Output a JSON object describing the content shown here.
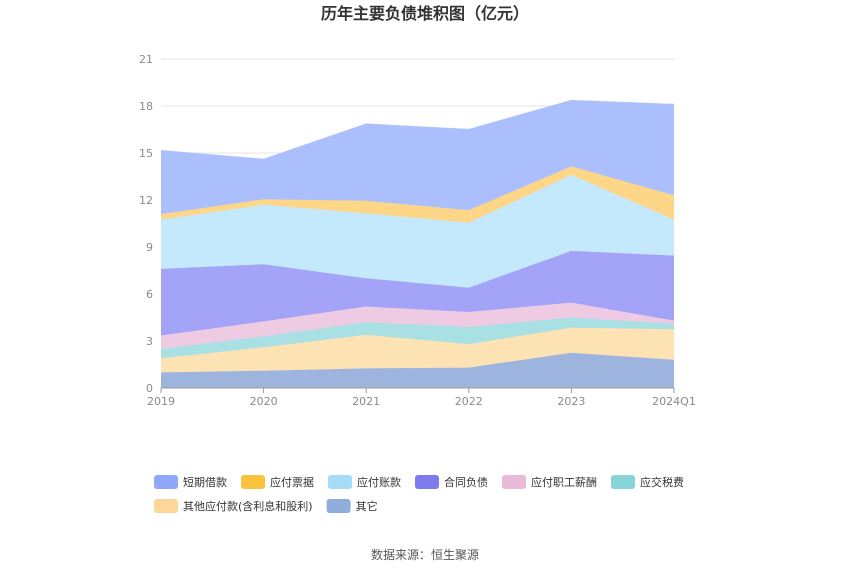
{
  "chart_data": {
    "type": "area",
    "stacked": true,
    "title": "历年主要负债堆积图（亿元）",
    "xlabel": "",
    "ylabel": "",
    "categories": [
      "2019",
      "2020",
      "2021",
      "2022",
      "2023",
      "2024Q1"
    ],
    "ylim": [
      0,
      21
    ],
    "yticks": [
      "0",
      "3",
      "6",
      "9",
      "12",
      "15",
      "18",
      "21"
    ],
    "grid": true,
    "legend_position": "bottom",
    "series": [
      {
        "name": "其它",
        "color": "#9db5de",
        "values": [
          1.0,
          1.1,
          1.25,
          1.3,
          2.25,
          1.8
        ]
      },
      {
        "name": "其他应付款(含利息和股利)",
        "color": "#fde2b4",
        "values": [
          0.9,
          1.5,
          2.15,
          1.5,
          1.6,
          1.95
        ]
      },
      {
        "name": "应交税费",
        "color": "#a8e0e3",
        "values": [
          0.6,
          0.7,
          0.8,
          1.1,
          0.65,
          0.35
        ]
      },
      {
        "name": "应付职工薪酬",
        "color": "#efcbe3",
        "values": [
          0.85,
          0.95,
          1.0,
          0.95,
          0.95,
          0.2
        ]
      },
      {
        "name": "合同负债",
        "color": "#a3a3f7",
        "values": [
          4.25,
          3.65,
          1.8,
          1.55,
          3.3,
          4.15
        ]
      },
      {
        "name": "应付账款",
        "color": "#c4e8fc",
        "values": [
          3.15,
          3.8,
          4.15,
          4.15,
          4.85,
          2.3
        ]
      },
      {
        "name": "应付票据",
        "color": "#fdd688",
        "values": [
          0.35,
          0.35,
          0.8,
          0.8,
          0.55,
          1.55
        ]
      },
      {
        "name": "短期借款",
        "color": "#acbffd",
        "values": [
          4.05,
          2.55,
          4.9,
          5.15,
          4.2,
          5.8
        ]
      }
    ],
    "legend": [
      {
        "name": "短期借款",
        "color": "#8fa8fa"
      },
      {
        "name": "应付票据",
        "color": "#fbc23d"
      },
      {
        "name": "应付账款",
        "color": "#a5dcfa"
      },
      {
        "name": "合同负债",
        "color": "#7c7cef"
      },
      {
        "name": "应付职工薪酬",
        "color": "#e8b9d8"
      },
      {
        "name": "应交税费",
        "color": "#86d4d8"
      },
      {
        "name": "其他应付款(含利息和股利)",
        "color": "#fdd79a"
      },
      {
        "name": "其它",
        "color": "#8faedb"
      }
    ]
  },
  "source_text": "数据来源：恒生聚源"
}
